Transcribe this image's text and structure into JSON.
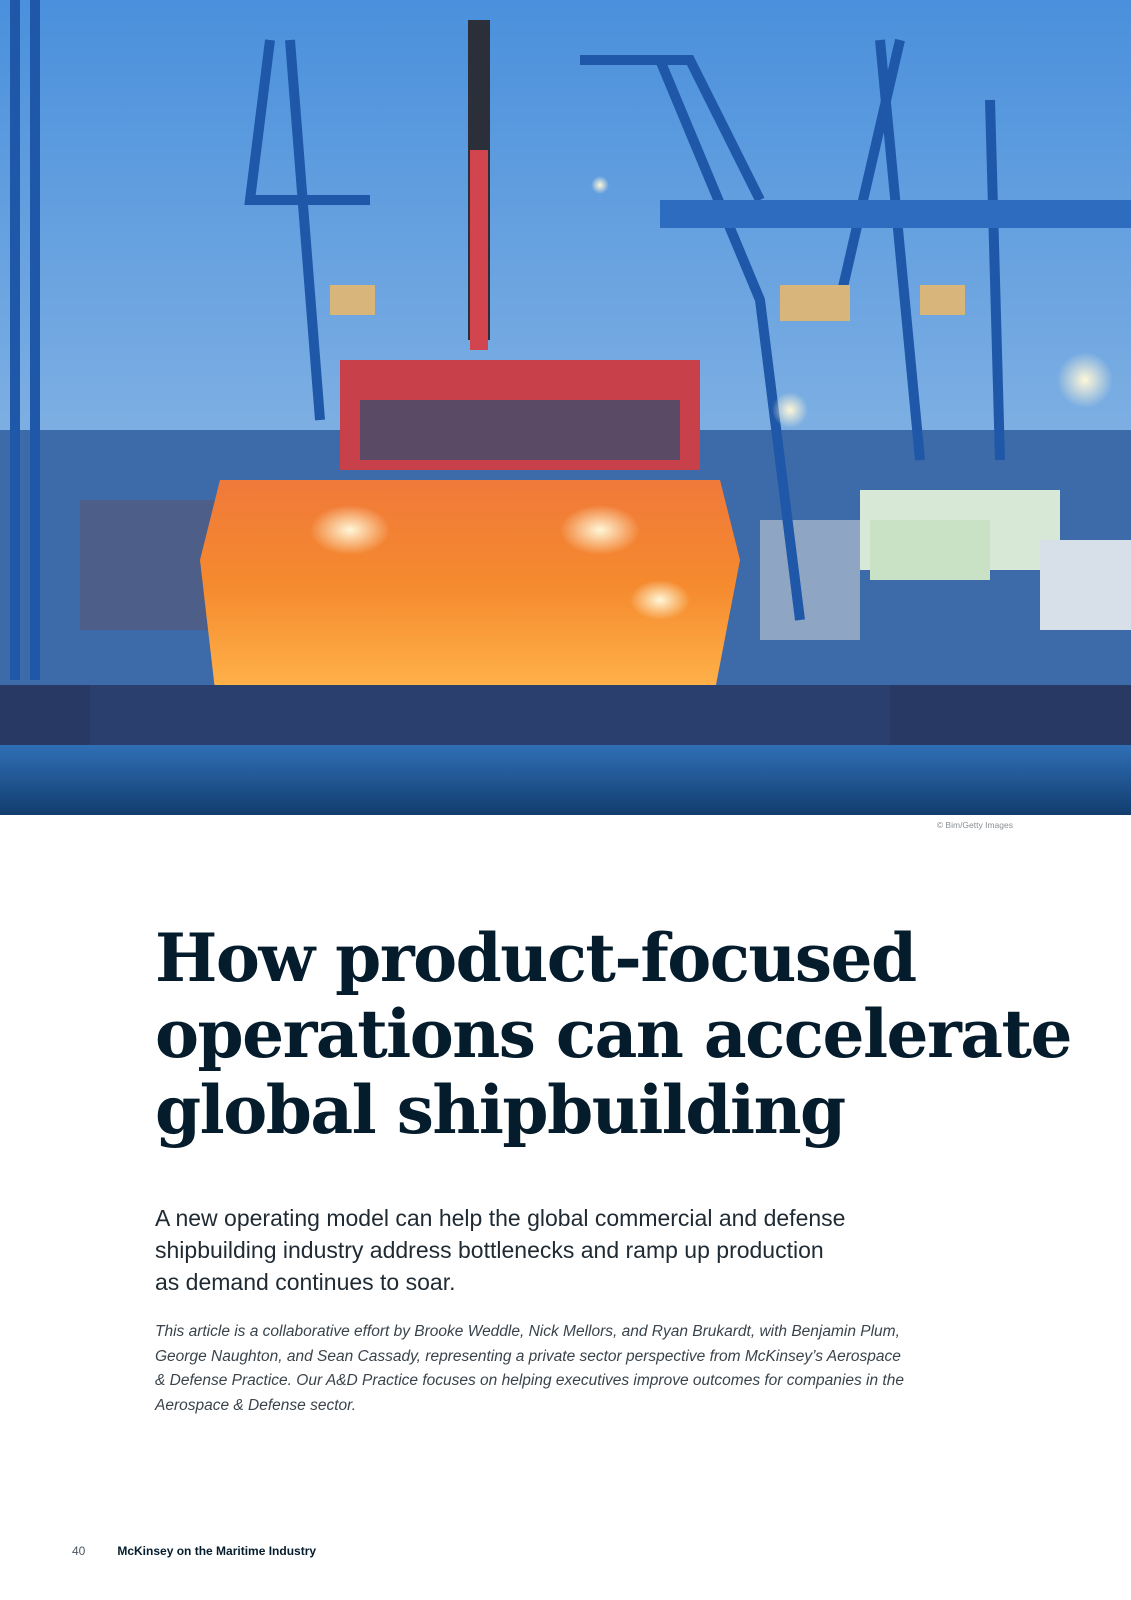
{
  "photo": {
    "description_icon": "shipyard-photo",
    "credit": "© Bim/Getty Images"
  },
  "article": {
    "title_lines": [
      "How product-focused",
      "operations can accelerate",
      "global shipbuilding"
    ],
    "deck_lines": [
      "A new operating model can help the global commercial and defense",
      "shipbuilding industry address bottlenecks and ramp up production",
      "as demand continues to soar."
    ],
    "authors_lines": [
      "This article is a collaborative effort by Brooke Weddle, Nick Mellors, and Ryan Brukardt, with Benjamin Plum,",
      "George Naughton, and Sean Cassady, representing a private sector perspective from McKinsey’s Aerospace",
      "& Defense Practice. Our A&D Practice focuses on helping executives improve outcomes for companies in the",
      "Aerospace & Defense sector."
    ]
  },
  "footer": {
    "page_number": "40",
    "publication": "McKinsey on the Maritime Industry"
  },
  "colors": {
    "ink": "#051c2c",
    "sky": "#4f8fd6",
    "crane": "#1f5fae",
    "hull": "#ee6a1e",
    "water": "#1c4f86"
  }
}
